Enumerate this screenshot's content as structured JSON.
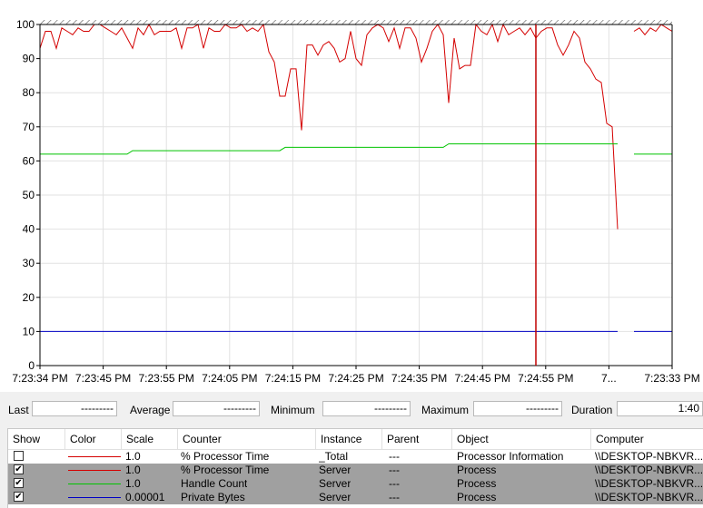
{
  "chart": {
    "y_ticks": [
      "100",
      "90",
      "80",
      "70",
      "60",
      "50",
      "40",
      "30",
      "20",
      "10",
      "0"
    ],
    "x_ticks": [
      "7:23:34 PM",
      "7:23:45 PM",
      "7:23:55 PM",
      "7:24:05 PM",
      "7:24:15 PM",
      "7:24:25 PM",
      "7:24:35 PM",
      "7:24:45 PM",
      "7:24:55 PM",
      "7...",
      "7:23:33 PM"
    ],
    "y_range": [
      0,
      100
    ],
    "current_sample": 91,
    "series": [
      {
        "name": "% Processor Time (Server)",
        "color": "#d40000",
        "values": [
          93,
          98,
          98,
          93,
          99,
          98,
          97,
          99,
          98,
          98,
          100,
          100,
          99,
          98,
          97,
          99,
          96,
          93,
          99,
          97,
          100,
          97,
          98,
          98,
          98,
          99,
          93,
          99,
          99,
          100,
          93,
          99,
          98,
          98,
          100,
          99,
          99,
          100,
          98,
          99,
          98,
          100,
          92,
          89,
          79,
          79,
          87,
          87,
          69,
          94,
          94,
          91,
          94,
          95,
          93,
          89,
          90,
          98,
          90,
          88,
          97,
          99,
          100,
          99,
          95,
          99,
          93,
          99,
          99,
          96,
          89,
          93,
          98,
          100,
          97,
          77,
          96,
          87,
          88,
          88,
          100,
          98,
          97,
          100,
          95,
          100,
          97,
          98,
          99,
          97,
          99,
          96,
          98,
          99,
          99,
          94,
          91,
          94,
          98,
          96,
          89,
          87,
          84,
          83,
          71,
          70,
          40,
          null,
          null,
          98,
          99,
          97,
          99,
          98,
          100,
          99,
          98
        ]
      },
      {
        "name": "Handle Count (Server)",
        "color": "#00c400",
        "values": [
          62,
          62,
          62,
          62,
          62,
          62,
          62,
          62,
          62,
          62,
          62,
          62,
          62,
          62,
          62,
          62,
          62,
          63,
          63,
          63,
          63,
          63,
          63,
          63,
          63,
          63,
          63,
          63,
          63,
          63,
          63,
          63,
          63,
          63,
          63,
          63,
          63,
          63,
          63,
          63,
          63,
          63,
          63,
          63,
          63,
          64,
          64,
          64,
          64,
          64,
          64,
          64,
          64,
          64,
          64,
          64,
          64,
          64,
          64,
          64,
          64,
          64,
          64,
          64,
          64,
          64,
          64,
          64,
          64,
          64,
          64,
          64,
          64,
          64,
          64,
          65,
          65,
          65,
          65,
          65,
          65,
          65,
          65,
          65,
          65,
          65,
          65,
          65,
          65,
          65,
          65,
          65,
          65,
          65,
          65,
          65,
          65,
          65,
          65,
          65,
          65,
          65,
          65,
          65,
          65,
          65,
          65,
          null,
          null,
          62,
          62,
          62,
          62,
          62,
          62,
          62,
          62
        ]
      },
      {
        "name": "Private Bytes (Server)",
        "color": "#0000c4",
        "values": [
          10,
          10,
          10,
          10,
          10,
          10,
          10,
          10,
          10,
          10,
          10,
          10,
          10,
          10,
          10,
          10,
          10,
          10,
          10,
          10,
          10,
          10,
          10,
          10,
          10,
          10,
          10,
          10,
          10,
          10,
          10,
          10,
          10,
          10,
          10,
          10,
          10,
          10,
          10,
          10,
          10,
          10,
          10,
          10,
          10,
          10,
          10,
          10,
          10,
          10,
          10,
          10,
          10,
          10,
          10,
          10,
          10,
          10,
          10,
          10,
          10,
          10,
          10,
          10,
          10,
          10,
          10,
          10,
          10,
          10,
          10,
          10,
          10,
          10,
          10,
          10,
          10,
          10,
          10,
          10,
          10,
          10,
          10,
          10,
          10,
          10,
          10,
          10,
          10,
          10,
          10,
          10,
          10,
          10,
          10,
          10,
          10,
          10,
          10,
          10,
          10,
          10,
          10,
          10,
          10,
          10,
          10,
          null,
          null,
          10,
          10,
          10,
          10,
          10,
          10,
          10,
          10
        ]
      }
    ]
  },
  "stats": {
    "last_label": "Last",
    "last_value": "---------",
    "average_label": "Average",
    "average_value": "---------",
    "minimum_label": "Minimum",
    "minimum_value": "---------",
    "maximum_label": "Maximum",
    "maximum_value": "---------",
    "duration_label": "Duration",
    "duration_value": "1:40"
  },
  "table": {
    "headers": {
      "show": "Show",
      "color": "Color",
      "scale": "Scale",
      "counter": "Counter",
      "instance": "Instance",
      "parent": "Parent",
      "object": "Object",
      "computer": "Computer"
    },
    "rows": [
      {
        "checked": false,
        "color": "#d40000",
        "scale": "1.0",
        "counter": "% Processor Time",
        "instance": "_Total",
        "parent": "---",
        "object": "Processor Information",
        "computer": "\\\\DESKTOP-NBKVR..."
      },
      {
        "checked": true,
        "color": "#d40000",
        "scale": "1.0",
        "counter": "% Processor Time",
        "instance": "Server",
        "parent": "---",
        "object": "Process",
        "computer": "\\\\DESKTOP-NBKVR..."
      },
      {
        "checked": true,
        "color": "#00c400",
        "scale": "1.0",
        "counter": "Handle Count",
        "instance": "Server",
        "parent": "---",
        "object": "Process",
        "computer": "\\\\DESKTOP-NBKVR..."
      },
      {
        "checked": true,
        "color": "#0000c4",
        "scale": "0.00001",
        "counter": "Private Bytes",
        "instance": "Server",
        "parent": "---",
        "object": "Process",
        "computer": "\\\\DESKTOP-NBKVR..."
      }
    ]
  }
}
